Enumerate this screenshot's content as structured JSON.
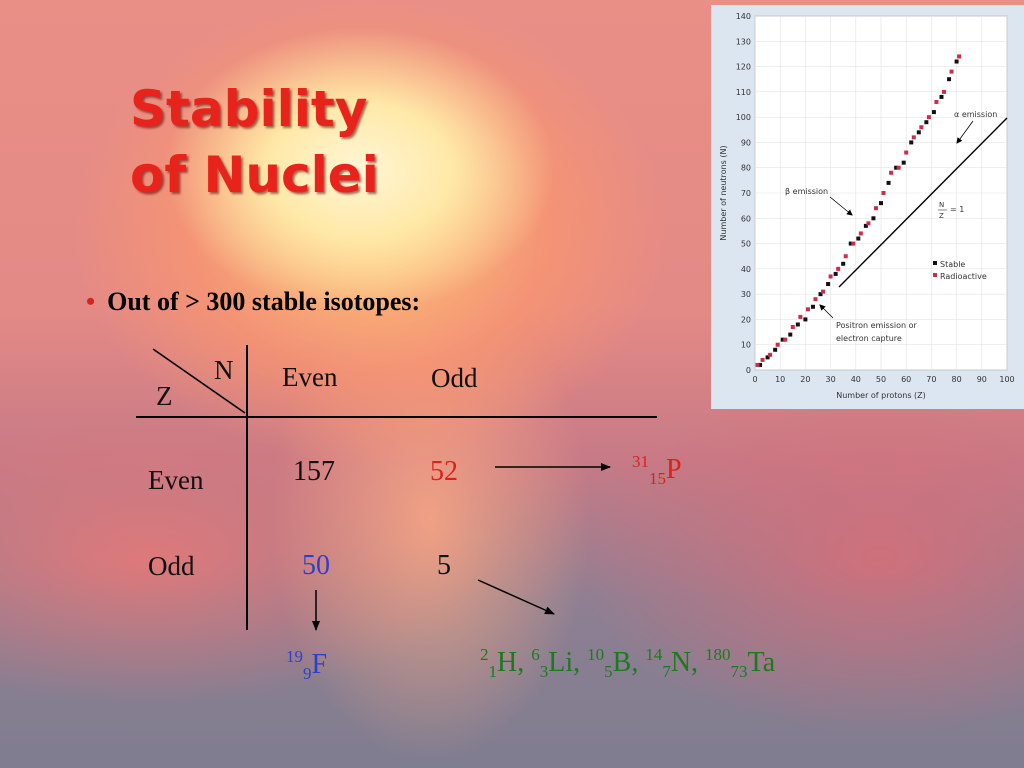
{
  "slide": {
    "title": "Stability\nof Nuclei",
    "bullet": "Out of > 300 stable isotopes:",
    "table": {
      "corner_n": "N",
      "corner_z": "Z",
      "col_even": "Even",
      "col_odd": "Odd",
      "row_even": "Even",
      "row_odd": "Odd",
      "even_even": "157",
      "even_odd": "52",
      "odd_even": "50",
      "odd_odd": "5"
    },
    "examples": {
      "phosphorus": {
        "mass": "31",
        "atomic": "15",
        "symbol": "P"
      },
      "fluorine": {
        "mass": "19",
        "atomic": "9",
        "symbol": "F"
      },
      "odd_odd_list": [
        {
          "mass": "2",
          "atomic": "1",
          "symbol": "H",
          "sep": ","
        },
        {
          "mass": "6",
          "atomic": "3",
          "symbol": "Li",
          "sep": ","
        },
        {
          "mass": "10",
          "atomic": "5",
          "symbol": "B",
          "sep": ","
        },
        {
          "mass": "14",
          "atomic": "7",
          "symbol": "N",
          "sep": ","
        },
        {
          "mass": "180",
          "atomic": "73",
          "symbol": "Ta",
          "sep": ""
        }
      ]
    },
    "colors": {
      "title": "#e8231c",
      "red": "#d8231b",
      "blue": "#2f3fc8",
      "green": "#1c7a1c"
    }
  },
  "chart_data": {
    "type": "scatter",
    "xlabel": "Number of protons (Z)",
    "ylabel": "Number of neutrons (N)",
    "xlim": [
      0,
      100
    ],
    "ylim": [
      0,
      140
    ],
    "x_ticks": [
      0,
      10,
      20,
      30,
      40,
      50,
      60,
      70,
      80,
      90,
      100
    ],
    "y_ticks": [
      0,
      10,
      20,
      30,
      40,
      50,
      60,
      70,
      80,
      90,
      100,
      110,
      120,
      130,
      140
    ],
    "grid": true,
    "legend": [
      "Stable",
      "Radioactive"
    ],
    "legend_position": "right",
    "series": [
      {
        "name": "Stable",
        "color": "#111111",
        "x": [
          2,
          5,
          8,
          11,
          14,
          17,
          20,
          23,
          26,
          29,
          32,
          35,
          38,
          41,
          44,
          47,
          50,
          53,
          56,
          59,
          62,
          65,
          68,
          71,
          74,
          77,
          80
        ],
        "y": [
          2,
          5,
          8,
          12,
          14,
          18,
          20,
          25,
          30,
          34,
          38,
          42,
          50,
          52,
          57,
          60,
          66,
          74,
          80,
          82,
          90,
          94,
          98,
          102,
          108,
          115,
          122
        ]
      },
      {
        "name": "Radioactive",
        "color": "#cc2d4c",
        "x": [
          1,
          3,
          6,
          9,
          12,
          15,
          18,
          21,
          24,
          27,
          30,
          33,
          36,
          39,
          42,
          45,
          48,
          51,
          54,
          57,
          60,
          63,
          66,
          69,
          72,
          75,
          78,
          81
        ],
        "y": [
          2,
          4,
          6,
          10,
          12,
          17,
          21,
          24,
          28,
          31,
          37,
          40,
          45,
          50,
          54,
          58,
          64,
          70,
          78,
          80,
          86,
          92,
          96,
          100,
          106,
          110,
          118,
          124
        ]
      }
    ],
    "reference_line": {
      "label_n": "N",
      "label_z": "Z",
      "label_value": "= 1"
    },
    "annotations": {
      "alpha": "α emission",
      "beta": "β emission",
      "positron_line1": "Positron emission or",
      "positron_line2": "electron capture"
    }
  }
}
